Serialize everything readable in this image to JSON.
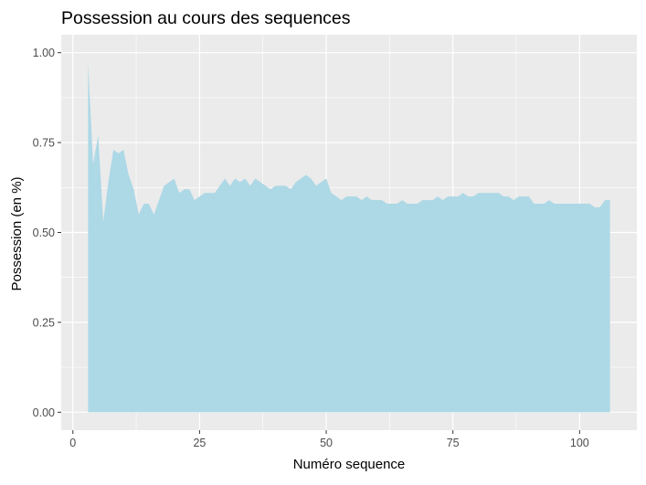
{
  "chart_data": {
    "type": "area",
    "title": "Possession au cours des sequences",
    "xlabel": "Numéro sequence",
    "ylabel": "Possession (en %)",
    "xlim": [
      -2.3,
      111.3
    ],
    "ylim": [
      -0.05,
      1.05
    ],
    "x_ticks": [
      0,
      25,
      50,
      75,
      100
    ],
    "x_tick_labels": [
      "0",
      "25",
      "50",
      "75",
      "100"
    ],
    "y_ticks": [
      0,
      0.25,
      0.5,
      0.75,
      1.0
    ],
    "y_tick_labels": [
      "0.00",
      "0.25",
      "0.50",
      "0.75",
      "1.00"
    ],
    "grid": true,
    "background": "#EBEBEB",
    "fill_color": "#ADD8E6",
    "series": [
      {
        "x": [
          3,
          4,
          5,
          6,
          7,
          8,
          9,
          10,
          11,
          12,
          13,
          14,
          15,
          16,
          17,
          18,
          19,
          20,
          21,
          22,
          23,
          24,
          25,
          26,
          27,
          28,
          29,
          30,
          31,
          32,
          33,
          34,
          35,
          36,
          37,
          38,
          39,
          40,
          41,
          42,
          43,
          44,
          45,
          46,
          47,
          48,
          49,
          50,
          51,
          52,
          53,
          54,
          55,
          56,
          57,
          58,
          59,
          60,
          61,
          62,
          63,
          64,
          65,
          66,
          67,
          68,
          69,
          70,
          71,
          72,
          73,
          74,
          75,
          76,
          77,
          78,
          79,
          80,
          81,
          82,
          83,
          84,
          85,
          86,
          87,
          88,
          89,
          90,
          91,
          92,
          93,
          94,
          95,
          96,
          97,
          98,
          99,
          100,
          101,
          102,
          103,
          104,
          105,
          106
        ],
        "y": [
          0.97,
          0.69,
          0.77,
          0.53,
          0.64,
          0.73,
          0.72,
          0.73,
          0.66,
          0.62,
          0.55,
          0.58,
          0.58,
          0.55,
          0.59,
          0.63,
          0.64,
          0.65,
          0.61,
          0.62,
          0.62,
          0.59,
          0.6,
          0.61,
          0.61,
          0.61,
          0.63,
          0.65,
          0.63,
          0.65,
          0.64,
          0.65,
          0.63,
          0.65,
          0.64,
          0.63,
          0.62,
          0.63,
          0.63,
          0.63,
          0.62,
          0.64,
          0.65,
          0.66,
          0.65,
          0.63,
          0.64,
          0.65,
          0.61,
          0.6,
          0.59,
          0.6,
          0.6,
          0.6,
          0.59,
          0.6,
          0.59,
          0.59,
          0.59,
          0.58,
          0.58,
          0.58,
          0.59,
          0.58,
          0.58,
          0.58,
          0.59,
          0.59,
          0.59,
          0.6,
          0.59,
          0.6,
          0.6,
          0.6,
          0.61,
          0.6,
          0.6,
          0.61,
          0.61,
          0.61,
          0.61,
          0.61,
          0.6,
          0.6,
          0.59,
          0.6,
          0.6,
          0.6,
          0.58,
          0.58,
          0.58,
          0.59,
          0.58,
          0.58,
          0.58,
          0.58,
          0.58,
          0.58,
          0.58,
          0.58,
          0.57,
          0.57,
          0.59,
          0.59
        ]
      }
    ]
  }
}
